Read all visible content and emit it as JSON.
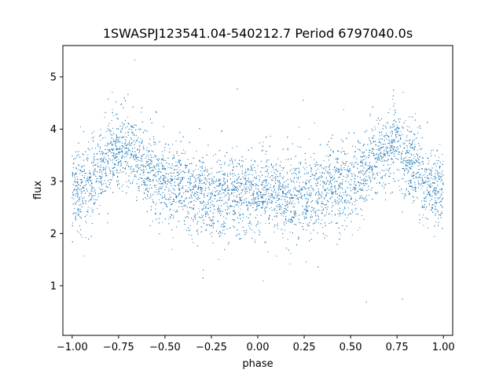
{
  "chart_data": {
    "type": "scatter",
    "title": "1SWASPJ123541.04-540212.7 Period 6797040.0s",
    "xlabel": "phase",
    "ylabel": "flux",
    "xlim": [
      -1.05,
      1.05
    ],
    "ylim": [
      0.05,
      5.6
    ],
    "grid": false,
    "point_color": "#1f77b4",
    "x_ticks": [
      -1.0,
      -0.75,
      -0.5,
      -0.25,
      0.0,
      0.25,
      0.5,
      0.75,
      1.0
    ],
    "x_tick_labels": [
      "−1.00",
      "−0.75",
      "−0.50",
      "−0.25",
      "0.00",
      "0.25",
      "0.50",
      "0.75",
      "1.00"
    ],
    "y_ticks": [
      1,
      2,
      3,
      4,
      5
    ],
    "y_tick_labels": [
      "1",
      "2",
      "3",
      "4",
      "5"
    ],
    "profile_phase": [
      -1.0,
      -0.95,
      -0.9,
      -0.85,
      -0.8,
      -0.75,
      -0.7,
      -0.65,
      -0.6,
      -0.55,
      -0.5,
      -0.45,
      -0.4,
      -0.35,
      -0.3,
      -0.25,
      -0.2,
      -0.15,
      -0.1,
      -0.05,
      0.0
    ],
    "profile_flux": [
      2.9,
      2.8,
      2.9,
      3.2,
      3.5,
      3.7,
      3.6,
      3.5,
      3.3,
      3.1,
      3.0,
      2.9,
      2.9,
      2.8,
      2.8,
      2.7,
      2.7,
      2.7,
      2.7,
      2.8,
      2.8
    ],
    "symmetry": "mirrored about phase 0 (x and -x share the same profile)",
    "n_points": 9000
  }
}
